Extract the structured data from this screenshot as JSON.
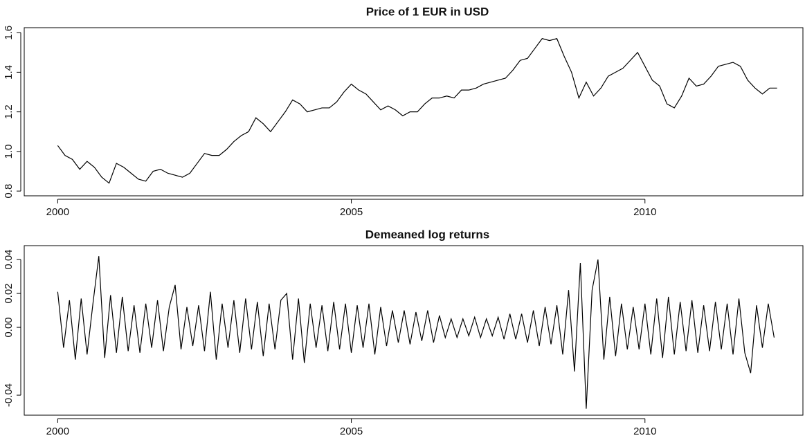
{
  "chart_data": [
    {
      "type": "line",
      "title": "Price of 1 EUR in USD",
      "color": "#000000",
      "x": [
        2000.0,
        2000.125,
        2000.25,
        2000.375,
        2000.5,
        2000.625,
        2000.75,
        2000.875,
        2001.0,
        2001.125,
        2001.25,
        2001.375,
        2001.5,
        2001.625,
        2001.75,
        2001.875,
        2002.0,
        2002.125,
        2002.25,
        2002.375,
        2002.5,
        2002.625,
        2002.75,
        2002.875,
        2003.0,
        2003.125,
        2003.25,
        2003.375,
        2003.5,
        2003.625,
        2003.75,
        2003.875,
        2004.0,
        2004.125,
        2004.25,
        2004.375,
        2004.5,
        2004.625,
        2004.75,
        2004.875,
        2005.0,
        2005.125,
        2005.25,
        2005.375,
        2005.5,
        2005.625,
        2005.75,
        2005.875,
        2006.0,
        2006.125,
        2006.25,
        2006.375,
        2006.5,
        2006.625,
        2006.75,
        2006.875,
        2007.0,
        2007.125,
        2007.25,
        2007.375,
        2007.5,
        2007.625,
        2007.75,
        2007.875,
        2008.0,
        2008.125,
        2008.25,
        2008.375,
        2008.5,
        2008.625,
        2008.75,
        2008.875,
        2009.0,
        2009.125,
        2009.25,
        2009.375,
        2009.5,
        2009.625,
        2009.75,
        2009.875,
        2010.0,
        2010.125,
        2010.25,
        2010.375,
        2010.5,
        2010.625,
        2010.75,
        2010.875,
        2011.0,
        2011.125,
        2011.25,
        2011.375,
        2011.5,
        2011.625,
        2011.75,
        2011.875,
        2012.0,
        2012.125,
        2012.25
      ],
      "values": [
        1.03,
        0.98,
        0.96,
        0.91,
        0.95,
        0.92,
        0.87,
        0.84,
        0.94,
        0.92,
        0.89,
        0.86,
        0.85,
        0.9,
        0.91,
        0.89,
        0.88,
        0.87,
        0.89,
        0.94,
        0.99,
        0.98,
        0.98,
        1.01,
        1.05,
        1.08,
        1.1,
        1.17,
        1.14,
        1.1,
        1.15,
        1.2,
        1.26,
        1.24,
        1.2,
        1.21,
        1.22,
        1.22,
        1.25,
        1.3,
        1.34,
        1.31,
        1.29,
        1.25,
        1.21,
        1.23,
        1.21,
        1.18,
        1.2,
        1.2,
        1.24,
        1.27,
        1.27,
        1.28,
        1.27,
        1.31,
        1.31,
        1.32,
        1.34,
        1.35,
        1.36,
        1.37,
        1.41,
        1.46,
        1.47,
        1.52,
        1.57,
        1.56,
        1.57,
        1.48,
        1.4,
        1.27,
        1.35,
        1.28,
        1.32,
        1.38,
        1.4,
        1.42,
        1.46,
        1.5,
        1.43,
        1.36,
        1.33,
        1.24,
        1.22,
        1.28,
        1.37,
        1.33,
        1.34,
        1.38,
        1.43,
        1.44,
        1.45,
        1.43,
        1.36,
        1.32,
        1.29,
        1.32,
        1.32
      ],
      "xlim": [
        1999.43,
        2012.69
      ],
      "xticks": [
        2000,
        2005,
        2010
      ],
      "ylim": [
        0.776,
        1.625
      ],
      "yticks": [
        0.8,
        {
          "value": 1,
          "label": "1.0"
        },
        1.2,
        1.4,
        1.6
      ]
    },
    {
      "type": "line",
      "title": "Demeaned log returns",
      "color": "#000000",
      "x": [
        2000.0,
        2000.1,
        2000.2,
        2000.3,
        2000.4,
        2000.5,
        2000.6,
        2000.7,
        2000.8,
        2000.9,
        2001.0,
        2001.1,
        2001.2,
        2001.3,
        2001.4,
        2001.5,
        2001.6,
        2001.7,
        2001.8,
        2001.9,
        2002.0,
        2002.1,
        2002.2,
        2002.3,
        2002.4,
        2002.5,
        2002.6,
        2002.7,
        2002.8,
        2002.9,
        2003.0,
        2003.1,
        2003.2,
        2003.3,
        2003.4,
        2003.5,
        2003.6,
        2003.7,
        2003.8,
        2003.9,
        2004.0,
        2004.1,
        2004.2,
        2004.3,
        2004.4,
        2004.5,
        2004.6,
        2004.7,
        2004.8,
        2004.9,
        2005.0,
        2005.1,
        2005.2,
        2005.3,
        2005.4,
        2005.5,
        2005.6,
        2005.7,
        2005.8,
        2005.9,
        2006.0,
        2006.1,
        2006.2,
        2006.3,
        2006.4,
        2006.5,
        2006.6,
        2006.7,
        2006.8,
        2006.9,
        2007.0,
        2007.1,
        2007.2,
        2007.3,
        2007.4,
        2007.5,
        2007.6,
        2007.7,
        2007.8,
        2007.9,
        2008.0,
        2008.1,
        2008.2,
        2008.3,
        2008.4,
        2008.5,
        2008.6,
        2008.7,
        2008.8,
        2008.9,
        2009.0,
        2009.1,
        2009.2,
        2009.3,
        2009.4,
        2009.5,
        2009.6,
        2009.7,
        2009.8,
        2009.9,
        2010.0,
        2010.1,
        2010.2,
        2010.3,
        2010.4,
        2010.5,
        2010.6,
        2010.7,
        2010.8,
        2010.9,
        2011.0,
        2011.1,
        2011.2,
        2011.3,
        2011.4,
        2011.5,
        2011.6,
        2011.7,
        2011.8,
        2011.9,
        2012.0,
        2012.1,
        2012.2
      ],
      "values": [
        0.021,
        -0.012,
        0.016,
        -0.019,
        0.017,
        -0.016,
        0.014,
        0.042,
        -0.018,
        0.019,
        -0.015,
        0.018,
        -0.014,
        0.013,
        -0.015,
        0.014,
        -0.012,
        0.016,
        -0.014,
        0.012,
        0.025,
        -0.013,
        0.012,
        -0.011,
        0.013,
        -0.014,
        0.021,
        -0.019,
        0.014,
        -0.012,
        0.016,
        -0.015,
        0.017,
        -0.013,
        0.015,
        -0.017,
        0.014,
        -0.013,
        0.016,
        0.02,
        -0.019,
        0.017,
        -0.021,
        0.014,
        -0.012,
        0.013,
        -0.014,
        0.015,
        -0.013,
        0.014,
        -0.015,
        0.013,
        -0.012,
        0.014,
        -0.016,
        0.012,
        -0.011,
        0.01,
        -0.009,
        0.01,
        -0.01,
        0.009,
        -0.008,
        0.01,
        -0.009,
        0.007,
        -0.006,
        0.005,
        -0.006,
        0.005,
        -0.005,
        0.006,
        -0.006,
        0.005,
        -0.005,
        0.006,
        -0.007,
        0.008,
        -0.007,
        0.008,
        -0.009,
        0.01,
        -0.011,
        0.012,
        -0.01,
        0.013,
        -0.016,
        0.022,
        -0.026,
        0.038,
        -0.048,
        0.022,
        0.04,
        -0.019,
        0.018,
        -0.017,
        0.014,
        -0.013,
        0.012,
        -0.013,
        0.014,
        -0.016,
        0.017,
        -0.018,
        0.018,
        -0.016,
        0.015,
        -0.014,
        0.016,
        -0.015,
        0.013,
        -0.014,
        0.015,
        -0.013,
        0.014,
        -0.016,
        0.017,
        -0.015,
        -0.027,
        0.013,
        -0.012,
        0.014,
        -0.006
      ],
      "xlim": [
        1999.43,
        2012.69
      ],
      "xticks": [
        2000,
        2005,
        2010
      ],
      "ylim": [
        -0.0518,
        0.0482
      ],
      "yticks": [
        -0.04,
        {
          "value": 0,
          "label": "0.00"
        },
        0.02,
        0.04
      ]
    }
  ]
}
